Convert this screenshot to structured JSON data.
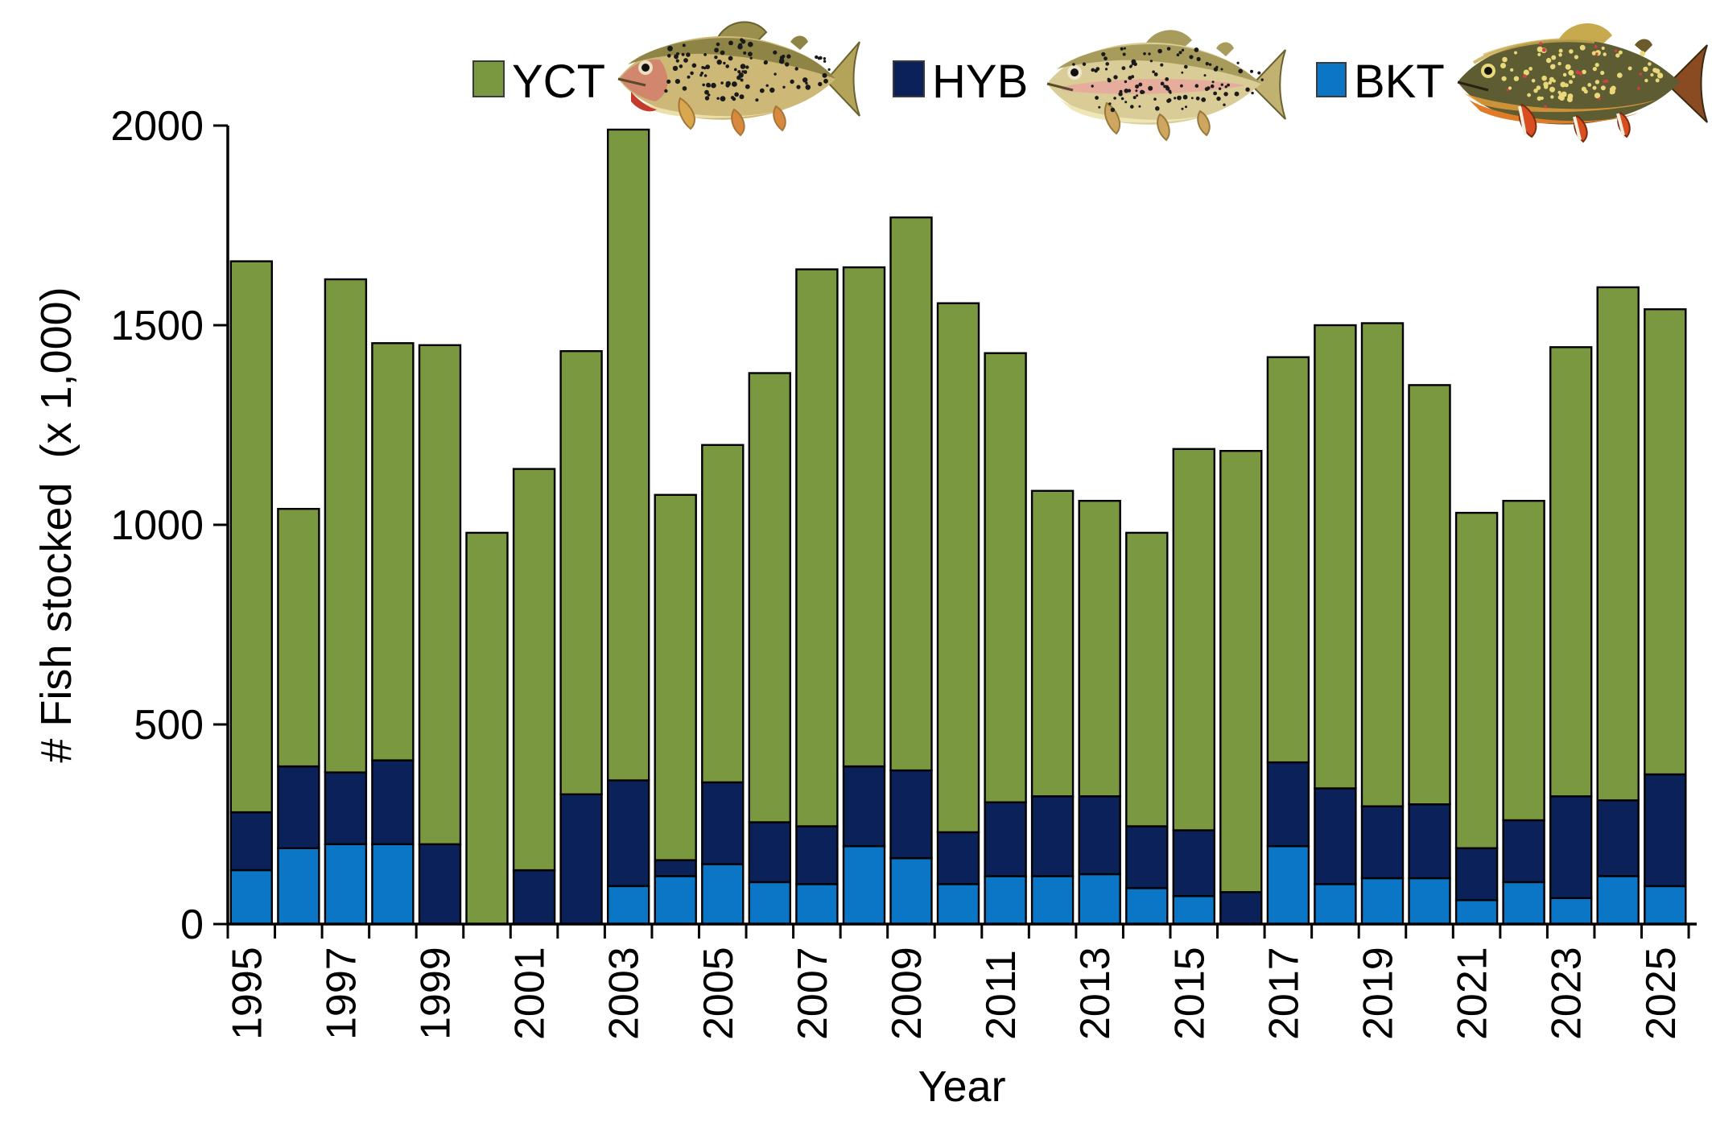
{
  "chart_data": {
    "type": "bar",
    "stacked": true,
    "title": "",
    "xlabel": "Year",
    "ylabel": "# Fish stocked  (x 1,000)",
    "ylim": [
      0,
      2000
    ],
    "yticks": [
      0,
      500,
      1000,
      1500,
      2000
    ],
    "x_labeled_years": [
      1995,
      1997,
      1999,
      2001,
      2003,
      2005,
      2007,
      2009,
      2011,
      2013,
      2015,
      2017,
      2019,
      2021,
      2023,
      2025
    ],
    "categories": [
      1995,
      1996,
      1997,
      1998,
      1999,
      2000,
      2001,
      2002,
      2003,
      2004,
      2005,
      2006,
      2007,
      2008,
      2009,
      2010,
      2011,
      2012,
      2013,
      2014,
      2015,
      2016,
      2017,
      2018,
      2019,
      2020,
      2021,
      2022,
      2023,
      2024,
      2025
    ],
    "series": [
      {
        "name": "YCT",
        "color": "#7A9840",
        "fish_icon": "cutthroat-trout-icon",
        "values": [
          1380,
          645,
          1235,
          1045,
          1250,
          980,
          1005,
          1110,
          1630,
          915,
          845,
          1125,
          1395,
          1250,
          1385,
          1325,
          1125,
          765,
          740,
          735,
          955,
          1105,
          1015,
          1160,
          1210,
          1050,
          840,
          800,
          1125,
          1285,
          1165
        ]
      },
      {
        "name": "HYB",
        "color": "#0B2159",
        "fish_icon": "hybrid-trout-icon",
        "values": [
          145,
          205,
          180,
          210,
          200,
          0,
          135,
          325,
          265,
          40,
          205,
          150,
          145,
          200,
          220,
          130,
          185,
          200,
          195,
          155,
          165,
          80,
          210,
          240,
          180,
          185,
          130,
          155,
          255,
          190,
          280
        ]
      },
      {
        "name": "BKT",
        "color": "#0B76C6",
        "fish_icon": "brook-trout-icon",
        "values": [
          135,
          190,
          200,
          200,
          0,
          0,
          0,
          0,
          95,
          120,
          150,
          105,
          100,
          195,
          165,
          100,
          120,
          120,
          125,
          90,
          70,
          0,
          195,
          100,
          115,
          115,
          60,
          105,
          65,
          120,
          95
        ]
      }
    ],
    "legend_position": "top",
    "grid": false,
    "bar_outline_color": "#000000",
    "background_color": "#FFFFFF"
  }
}
